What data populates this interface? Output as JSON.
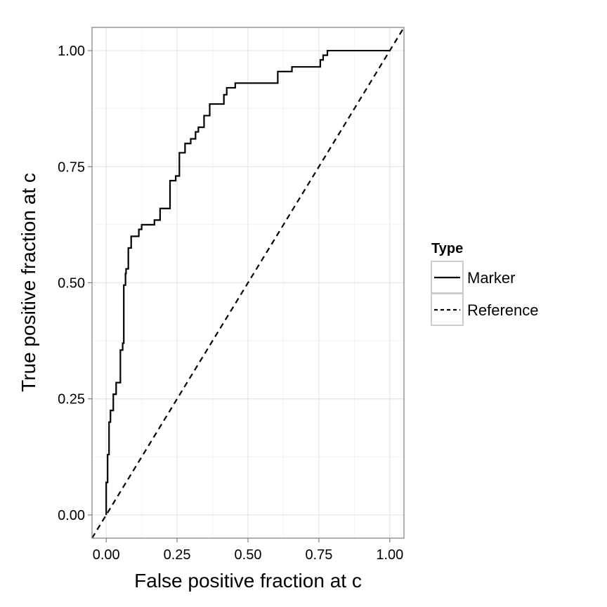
{
  "chart_data": {
    "type": "line",
    "title": "",
    "xlabel": "False positive fraction at c",
    "ylabel": "True positive fraction at c",
    "xlim": [
      -0.05,
      1.05
    ],
    "ylim": [
      -0.05,
      1.05
    ],
    "x_ticks": [
      0,
      0.25,
      0.5,
      0.75,
      1
    ],
    "x_tick_labels": [
      "0.00",
      "0.25",
      "0.50",
      "0.75",
      "1.00"
    ],
    "y_ticks": [
      0,
      0.25,
      0.5,
      0.75,
      1
    ],
    "y_tick_labels": [
      "0.00",
      "0.25",
      "0.50",
      "0.75",
      "1.00"
    ],
    "grid": true,
    "legend": {
      "title": "Type",
      "position": "right",
      "entries": [
        {
          "label": "Marker",
          "linetype": "solid"
        },
        {
          "label": "Reference",
          "linetype": "dashed"
        }
      ]
    },
    "series": [
      {
        "name": "Marker",
        "linetype": "solid",
        "color": "#000000",
        "x": [
          0.0,
          0.0,
          0.005,
          0.005,
          0.01,
          0.01,
          0.015,
          0.015,
          0.025,
          0.025,
          0.035,
          0.035,
          0.05,
          0.05,
          0.058,
          0.058,
          0.062,
          0.062,
          0.068,
          0.068,
          0.07,
          0.07,
          0.078,
          0.078,
          0.088,
          0.088,
          0.095,
          0.095,
          0.115,
          0.115,
          0.125,
          0.125,
          0.17,
          0.17,
          0.19,
          0.19,
          0.225,
          0.225,
          0.245,
          0.245,
          0.258,
          0.258,
          0.278,
          0.278,
          0.298,
          0.298,
          0.315,
          0.315,
          0.325,
          0.325,
          0.345,
          0.345,
          0.365,
          0.365,
          0.415,
          0.415,
          0.425,
          0.425,
          0.455,
          0.455,
          0.605,
          0.605,
          0.655,
          0.655,
          0.755,
          0.755,
          0.765,
          0.765,
          0.78,
          0.78,
          1.0
        ],
        "y": [
          0.0,
          0.07,
          0.07,
          0.13,
          0.13,
          0.2,
          0.2,
          0.225,
          0.225,
          0.26,
          0.26,
          0.285,
          0.285,
          0.355,
          0.355,
          0.37,
          0.37,
          0.495,
          0.495,
          0.52,
          0.52,
          0.53,
          0.53,
          0.575,
          0.575,
          0.6,
          0.6,
          0.6,
          0.6,
          0.615,
          0.615,
          0.625,
          0.625,
          0.635,
          0.635,
          0.66,
          0.66,
          0.72,
          0.72,
          0.73,
          0.73,
          0.78,
          0.78,
          0.8,
          0.8,
          0.81,
          0.81,
          0.825,
          0.825,
          0.835,
          0.835,
          0.86,
          0.86,
          0.885,
          0.885,
          0.905,
          0.905,
          0.92,
          0.92,
          0.93,
          0.93,
          0.955,
          0.955,
          0.965,
          0.965,
          0.98,
          0.98,
          0.99,
          0.99,
          1.0,
          1.0
        ]
      },
      {
        "name": "Reference",
        "linetype": "dashed",
        "color": "#000000",
        "x": [
          -0.05,
          1.05
        ],
        "y": [
          -0.05,
          1.05
        ]
      }
    ]
  }
}
